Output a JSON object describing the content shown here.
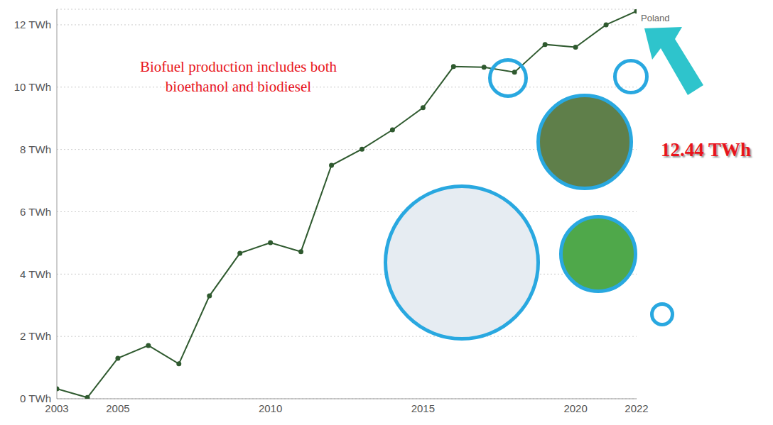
{
  "chart_data": {
    "type": "line",
    "annotations": [
      "Biofuel production includes both bioethanol and biodiesel",
      "12.44 TWh"
    ],
    "x": [
      2003,
      2004,
      2005,
      2006,
      2007,
      2008,
      2009,
      2010,
      2011,
      2012,
      2013,
      2014,
      2015,
      2016,
      2017,
      2018,
      2019,
      2020,
      2021,
      2022
    ],
    "series": [
      {
        "name": "Poland",
        "color": "#2f5a2f",
        "marker": "circle",
        "values": [
          0.32,
          0.04,
          1.3,
          1.71,
          1.12,
          3.3,
          4.67,
          5.01,
          4.72,
          7.49,
          8.01,
          8.63,
          9.34,
          10.66,
          10.64,
          10.48,
          11.37,
          11.28,
          12.0,
          12.44
        ]
      }
    ],
    "xlim": [
      2003,
      2022
    ],
    "xticks": [
      2003,
      2005,
      2010,
      2015,
      2020,
      2022
    ],
    "ylim": [
      0,
      12.5
    ],
    "yticks": [
      {
        "value": 0,
        "label": "0 TWh"
      },
      {
        "value": 2,
        "label": "2 TWh"
      },
      {
        "value": 4,
        "label": "4 TWh"
      },
      {
        "value": 6,
        "label": "6 TWh"
      },
      {
        "value": 8,
        "label": "8 TWh"
      },
      {
        "value": 10,
        "label": "10 TWh"
      },
      {
        "value": 12,
        "label": "12 TWh"
      }
    ],
    "grid": true
  }
}
